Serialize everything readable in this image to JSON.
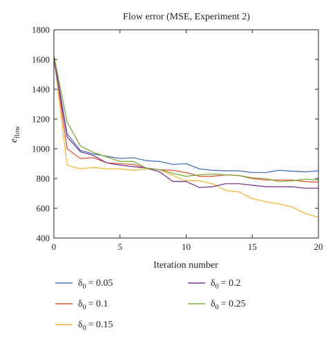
{
  "chart_data": {
    "type": "line",
    "title": "Flow error (MSE, Experiment 2)",
    "xlabel": "Iteration number",
    "ylabel": {
      "main": "e",
      "subscript": "flow"
    },
    "xlim": [
      0,
      20
    ],
    "ylim": [
      400,
      1800
    ],
    "xticks": [
      0,
      5,
      10,
      15,
      20
    ],
    "yticks": [
      400,
      600,
      800,
      1000,
      1200,
      1400,
      1600,
      1800
    ],
    "grid": false,
    "legend_position": "bottom",
    "x": [
      0,
      1,
      2,
      3,
      4,
      5,
      6,
      7,
      8,
      9,
      10,
      11,
      12,
      13,
      14,
      15,
      16,
      17,
      18,
      19,
      20
    ],
    "series": [
      {
        "name": "δ0 = 0.05",
        "symbol": "δ",
        "subscript": "0",
        "value_text": "= 0.05",
        "color": "#4a72b8",
        "values": [
          1620,
          1100,
          990,
          965,
          950,
          935,
          940,
          920,
          915,
          895,
          900,
          865,
          855,
          852,
          852,
          840,
          840,
          855,
          850,
          845,
          852
        ]
      },
      {
        "name": "δ0 = 0.1",
        "symbol": "δ",
        "subscript": "0",
        "value_text": "= 0.1",
        "color": "#e0553a",
        "values": [
          1620,
          1000,
          935,
          940,
          905,
          900,
          895,
          870,
          860,
          855,
          840,
          815,
          815,
          825,
          820,
          800,
          790,
          790,
          790,
          780,
          775
        ]
      },
      {
        "name": "δ0 = 0.15",
        "symbol": "δ",
        "subscript": "0",
        "value_text": "= 0.15",
        "color": "#f2b73a",
        "values": [
          1620,
          890,
          865,
          875,
          865,
          865,
          855,
          865,
          860,
          820,
          785,
          785,
          765,
          720,
          710,
          665,
          645,
          630,
          610,
          565,
          540
        ]
      },
      {
        "name": "δ0 = 0.2",
        "symbol": "δ",
        "subscript": "0",
        "value_text": "= 0.2",
        "color": "#7d3a95",
        "values": [
          1600,
          1080,
          980,
          955,
          905,
          890,
          880,
          870,
          845,
          780,
          780,
          740,
          745,
          765,
          765,
          755,
          745,
          745,
          745,
          735,
          735
        ]
      },
      {
        "name": "δ0 = 0.25",
        "symbol": "δ",
        "subscript": "0",
        "value_text": "= 0.25",
        "color": "#7fa83a",
        "values": [
          1630,
          1180,
          1020,
          975,
          945,
          915,
          915,
          870,
          860,
          835,
          815,
          825,
          830,
          825,
          820,
          805,
          800,
          780,
          785,
          795,
          790
        ]
      }
    ]
  }
}
